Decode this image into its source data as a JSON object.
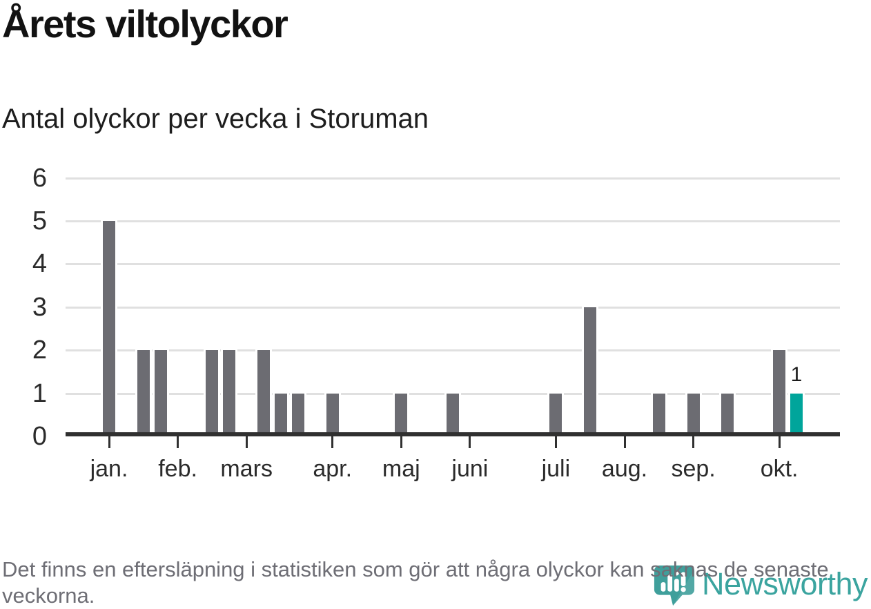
{
  "chart_data": {
    "type": "bar",
    "title": "Årets viltolyckor",
    "subtitle": "Antal olyckor per vecka i Storuman",
    "x_unit": "vecka",
    "weeks": [
      5,
      0,
      2,
      2,
      0,
      0,
      2,
      2,
      0,
      2,
      1,
      1,
      0,
      1,
      0,
      0,
      0,
      1,
      0,
      0,
      1,
      0,
      0,
      0,
      0,
      0,
      1,
      0,
      3,
      0,
      0,
      0,
      1,
      0,
      1,
      0,
      1,
      0,
      0,
      2,
      1,
      0,
      0
    ],
    "month_ticks": [
      {
        "label": "jan.",
        "week": 0
      },
      {
        "label": "feb.",
        "week": 4
      },
      {
        "label": "mars",
        "week": 8
      },
      {
        "label": "apr.",
        "week": 13
      },
      {
        "label": "maj",
        "week": 17
      },
      {
        "label": "juni",
        "week": 21
      },
      {
        "label": "juli",
        "week": 26
      },
      {
        "label": "aug.",
        "week": 30
      },
      {
        "label": "sep.",
        "week": 34
      },
      {
        "label": "okt.",
        "week": 39
      }
    ],
    "highlight": {
      "week": 40,
      "value": 1,
      "label": "1"
    },
    "ylim": [
      0,
      6
    ],
    "yticks": [
      0,
      1,
      2,
      3,
      4,
      5,
      6
    ],
    "grid": true,
    "legend": false,
    "colors": {
      "bar": "#6c6c72",
      "highlight_bar": "#00a59b",
      "gridline": "#e0e0e0",
      "axis": "#303030",
      "tick_label": "#2b2b2b",
      "value_label": "#1a1a1a"
    }
  },
  "footer": {
    "note": "Det finns en eftersläpning i statistiken som gör att några olyckor kan saknas de senaste veckorna."
  },
  "logo": {
    "wordmark": "Newsworthy",
    "color": "#3ba49f",
    "icon": "newsworthy-pin-barchart-icon"
  }
}
